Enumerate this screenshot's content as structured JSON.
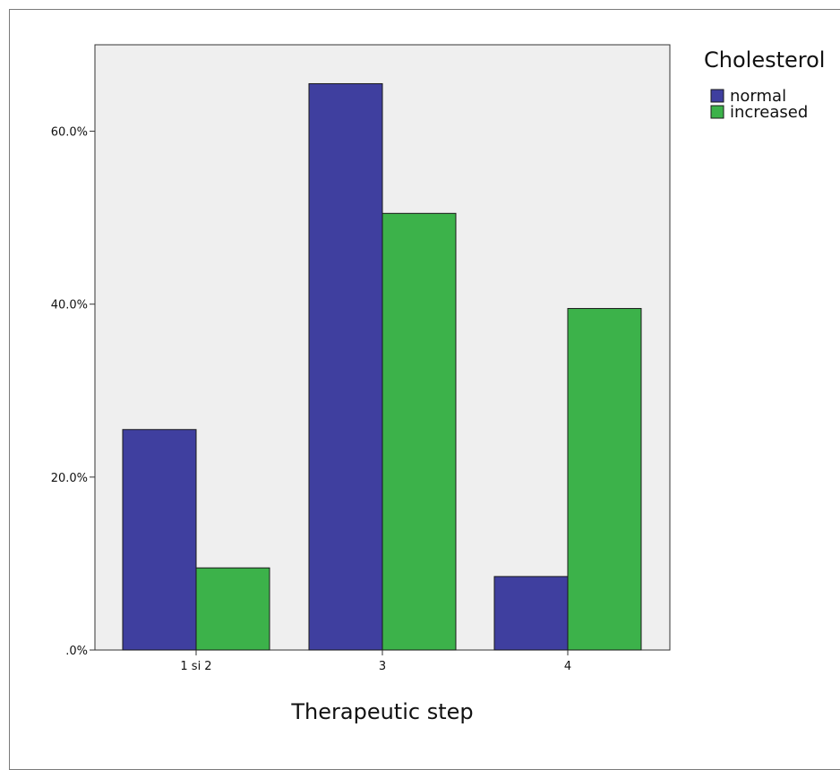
{
  "chart_data": {
    "type": "bar",
    "categories": [
      "1 si 2",
      "3",
      "4"
    ],
    "series": [
      {
        "name": "normal",
        "values": [
          25.5,
          65.5,
          8.5
        ],
        "color": "#3f3f9f"
      },
      {
        "name": "increased",
        "values": [
          9.5,
          50.5,
          39.5
        ],
        "color": "#3cb24a"
      }
    ],
    "ylim": [
      0,
      70
    ],
    "yticks": [
      0,
      20,
      40,
      60
    ],
    "ytick_labels": [
      ".0%",
      "20.0%",
      "40.0%",
      "60.0%"
    ],
    "xlabel": "Therapeutic step",
    "ylabel": "",
    "legend": {
      "title": "Cholesterol",
      "placement": "top-right"
    },
    "background": "#efefef",
    "grid": false
  }
}
